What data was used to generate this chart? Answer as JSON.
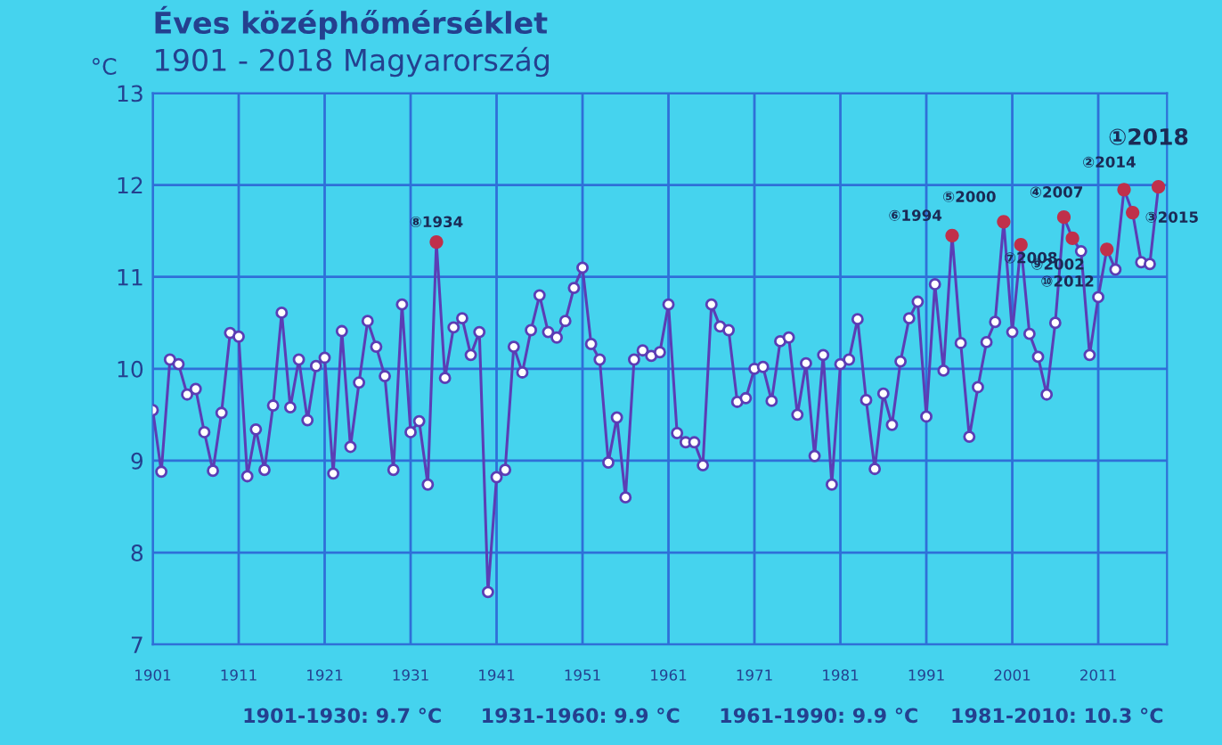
{
  "chart_data": {
    "type": "line",
    "title": "Éves középhőmérséklet",
    "subtitle": "1901 - 2018 Magyarország",
    "ylabel": "°C",
    "x": [
      1901,
      1902,
      1903,
      1904,
      1905,
      1906,
      1907,
      1908,
      1909,
      1910,
      1911,
      1912,
      1913,
      1914,
      1915,
      1916,
      1917,
      1918,
      1919,
      1920,
      1921,
      1922,
      1923,
      1924,
      1925,
      1926,
      1927,
      1928,
      1929,
      1930,
      1931,
      1932,
      1933,
      1934,
      1935,
      1936,
      1937,
      1938,
      1939,
      1940,
      1941,
      1942,
      1943,
      1944,
      1945,
      1946,
      1947,
      1948,
      1949,
      1950,
      1951,
      1952,
      1953,
      1954,
      1955,
      1956,
      1957,
      1958,
      1959,
      1960,
      1961,
      1962,
      1963,
      1964,
      1965,
      1966,
      1967,
      1968,
      1969,
      1970,
      1971,
      1972,
      1973,
      1974,
      1975,
      1976,
      1977,
      1978,
      1979,
      1980,
      1981,
      1982,
      1983,
      1984,
      1985,
      1986,
      1987,
      1988,
      1989,
      1990,
      1991,
      1992,
      1993,
      1994,
      1995,
      1996,
      1997,
      1998,
      1999,
      2000,
      2001,
      2002,
      2003,
      2004,
      2005,
      2006,
      2007,
      2008,
      2009,
      2010,
      2011,
      2012,
      2013,
      2014,
      2015,
      2016,
      2017,
      2018
    ],
    "series": [
      {
        "color": "#5b3db5",
        "marker": "circle",
        "values": [
          9.55,
          8.88,
          10.1,
          10.05,
          9.72,
          9.78,
          9.31,
          8.89,
          9.52,
          10.39,
          10.35,
          8.83,
          9.34,
          8.9,
          9.6,
          10.61,
          9.58,
          10.1,
          9.44,
          10.03,
          10.12,
          8.86,
          10.41,
          9.15,
          9.85,
          10.52,
          10.24,
          9.92,
          8.9,
          10.7,
          9.31,
          9.43,
          8.74,
          11.38,
          9.9,
          10.45,
          10.55,
          10.15,
          10.4,
          7.57,
          8.82,
          8.9,
          10.24,
          9.96,
          10.42,
          10.8,
          10.4,
          10.34,
          10.52,
          10.88,
          11.1,
          10.27,
          10.1,
          8.98,
          9.47,
          8.6,
          10.1,
          10.2,
          10.14,
          10.18,
          10.7,
          9.3,
          9.2,
          9.2,
          8.95,
          10.7,
          10.46,
          10.42,
          9.64,
          9.68,
          10.0,
          10.02,
          9.65,
          10.3,
          10.34,
          9.5,
          10.06,
          9.05,
          10.15,
          8.74,
          10.05,
          10.1,
          10.54,
          9.66,
          8.91,
          9.73,
          9.39,
          10.08,
          10.55,
          10.73,
          9.48,
          10.92,
          9.98,
          11.45,
          10.28,
          9.26,
          9.8,
          10.29,
          10.51,
          11.6,
          10.4,
          11.35,
          10.38,
          10.13,
          9.72,
          10.5,
          11.65,
          11.42,
          11.28,
          10.15,
          10.78,
          11.3,
          11.08,
          11.95,
          11.7,
          11.16,
          11.14,
          11.98
        ]
      },
      {
        "type": "scatter",
        "color": "#c0304a",
        "x": [
          1934,
          1994,
          2000,
          2002,
          2007,
          2008,
          2012,
          2014,
          2015,
          2018
        ],
        "values": [
          11.38,
          11.45,
          11.6,
          11.35,
          11.65,
          11.42,
          11.3,
          11.95,
          11.7,
          11.98
        ]
      }
    ],
    "xlim": [
      1901,
      2019
    ],
    "xticks": [
      1901,
      1911,
      1921,
      1931,
      1941,
      1951,
      1961,
      1971,
      1981,
      1991,
      2001,
      2011
    ],
    "ylim": [
      7,
      13
    ],
    "yticks": [
      7,
      8,
      9,
      10,
      11,
      12,
      13
    ],
    "grid": true,
    "legend": false,
    "annotations": [
      {
        "text": "⑧1934",
        "x": 1934,
        "y": 11.38
      },
      {
        "text": "⑥1994",
        "x": 1994,
        "y": 11.45
      },
      {
        "text": "⑤2000",
        "x": 2000,
        "y": 11.6
      },
      {
        "text": "⑨2002",
        "x": 2002,
        "y": 11.35
      },
      {
        "text": "④2007",
        "x": 2007,
        "y": 11.65
      },
      {
        "text": "⑦2008",
        "x": 2008,
        "y": 11.42
      },
      {
        "text": "⑩2012",
        "x": 2012,
        "y": 11.3
      },
      {
        "text": "②2014",
        "x": 2014,
        "y": 11.95
      },
      {
        "text": "③2015",
        "x": 2015,
        "y": 11.7
      },
      {
        "text": "①2018",
        "x": 2018,
        "y": 11.98
      },
      "1901-1930: 9.7 °C",
      "1931-1960: 9.9 °C",
      "1961-1990: 9.9 °C",
      "1981-2010: 10.3 °C"
    ]
  }
}
